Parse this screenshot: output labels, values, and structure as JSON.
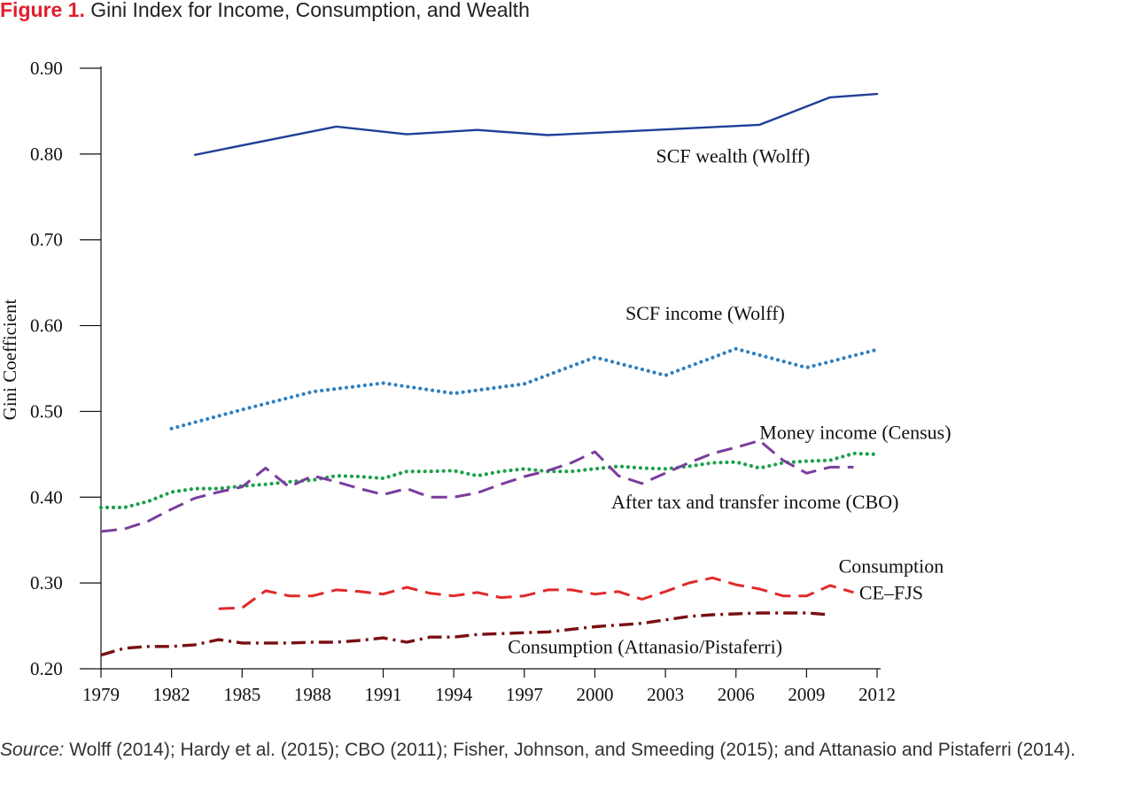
{
  "figure": {
    "number": "Figure 1.",
    "title": "Gini Index for Income, Consumption, and Wealth"
  },
  "source": {
    "label": "Source:",
    "text": "Wolff (2014); Hardy et al. (2015); CBO (2011); Fisher, Johnson, and Smeeding (2015); and Attanasio and Pistaferri (2014)."
  },
  "chart_data": {
    "type": "line",
    "title": "Gini Index for Income, Consumption, and Wealth",
    "xlabel": "",
    "ylabel": "Gini Coefficient",
    "xlim": [
      1979,
      2012
    ],
    "ylim": [
      0.2,
      0.9
    ],
    "x_ticks": [
      "1979",
      "1982",
      "1985",
      "1988",
      "1991",
      "1994",
      "1997",
      "2000",
      "2003",
      "2006",
      "2009",
      "2012"
    ],
    "y_ticks": [
      "0.20",
      "0.30",
      "0.40",
      "0.50",
      "0.60",
      "0.70",
      "0.80",
      "0.90"
    ],
    "grid": false,
    "legend": "none (series labeled directly on plot)",
    "series": [
      {
        "name": "SCF wealth (Wolff)",
        "color": "#1f3f99",
        "style": "solid",
        "label_lines": [
          "SCF  wealth (Wolff)"
        ],
        "points": [
          [
            1983,
            0.799
          ],
          [
            1989,
            0.832
          ],
          [
            1992,
            0.823
          ],
          [
            1995,
            0.828
          ],
          [
            1998,
            0.822
          ],
          [
            2001,
            0.826
          ],
          [
            2004,
            0.83
          ],
          [
            2007,
            0.834
          ],
          [
            2010,
            0.866
          ],
          [
            2012,
            0.87
          ]
        ]
      },
      {
        "name": "SCF income (Wolff)",
        "color": "#2f7fbf",
        "style": "dotted",
        "label_lines": [
          "SCF  income (Wolff)"
        ],
        "points": [
          [
            1982,
            0.48
          ],
          [
            1985,
            0.502
          ],
          [
            1988,
            0.523
          ],
          [
            1991,
            0.533
          ],
          [
            1994,
            0.521
          ],
          [
            1997,
            0.532
          ],
          [
            2000,
            0.563
          ],
          [
            2003,
            0.542
          ],
          [
            2006,
            0.573
          ],
          [
            2009,
            0.551
          ],
          [
            2012,
            0.572
          ]
        ]
      },
      {
        "name": "Money income (Census)",
        "color": "#1aa04a",
        "style": "dotted",
        "label_lines": [
          "Money income (Census)"
        ],
        "points": [
          [
            1979,
            0.388
          ],
          [
            1980,
            0.388
          ],
          [
            1981,
            0.395
          ],
          [
            1982,
            0.406
          ],
          [
            1983,
            0.41
          ],
          [
            1984,
            0.41
          ],
          [
            1985,
            0.413
          ],
          [
            1986,
            0.415
          ],
          [
            1987,
            0.418
          ],
          [
            1988,
            0.42
          ],
          [
            1989,
            0.425
          ],
          [
            1990,
            0.424
          ],
          [
            1991,
            0.422
          ],
          [
            1992,
            0.43
          ],
          [
            1993,
            0.43
          ],
          [
            1994,
            0.431
          ],
          [
            1995,
            0.425
          ],
          [
            1996,
            0.43
          ],
          [
            1997,
            0.433
          ],
          [
            1998,
            0.43
          ],
          [
            1999,
            0.43
          ],
          [
            2000,
            0.433
          ],
          [
            2001,
            0.436
          ],
          [
            2002,
            0.434
          ],
          [
            2003,
            0.433
          ],
          [
            2004,
            0.436
          ],
          [
            2005,
            0.44
          ],
          [
            2006,
            0.441
          ],
          [
            2007,
            0.434
          ],
          [
            2008,
            0.44
          ],
          [
            2009,
            0.442
          ],
          [
            2010,
            0.443
          ],
          [
            2011,
            0.451
          ],
          [
            2012,
            0.45
          ]
        ]
      },
      {
        "name": "After tax and transfer income (CBO)",
        "color": "#7b3c9e",
        "style": "dashed",
        "label_lines": [
          "After tax and transfer income (CBO)"
        ],
        "points": [
          [
            1979,
            0.36
          ],
          [
            1980,
            0.363
          ],
          [
            1981,
            0.372
          ],
          [
            1982,
            0.386
          ],
          [
            1983,
            0.399
          ],
          [
            1984,
            0.406
          ],
          [
            1985,
            0.412
          ],
          [
            1986,
            0.434
          ],
          [
            1987,
            0.412
          ],
          [
            1988,
            0.425
          ],
          [
            1989,
            0.418
          ],
          [
            1990,
            0.41
          ],
          [
            1991,
            0.403
          ],
          [
            1992,
            0.41
          ],
          [
            1993,
            0.4
          ],
          [
            1994,
            0.4
          ],
          [
            1995,
            0.405
          ],
          [
            1996,
            0.415
          ],
          [
            1997,
            0.424
          ],
          [
            1998,
            0.431
          ],
          [
            1999,
            0.44
          ],
          [
            2000,
            0.453
          ],
          [
            2001,
            0.425
          ],
          [
            2002,
            0.416
          ],
          [
            2003,
            0.428
          ],
          [
            2004,
            0.44
          ],
          [
            2005,
            0.451
          ],
          [
            2006,
            0.458
          ],
          [
            2007,
            0.466
          ],
          [
            2008,
            0.443
          ],
          [
            2009,
            0.428
          ],
          [
            2010,
            0.435
          ],
          [
            2011,
            0.435
          ]
        ]
      },
      {
        "name": "Consumption CE-FJS",
        "color": "#e02a2a",
        "style": "dashed",
        "label_lines": [
          "Consumption",
          "CE–FJS"
        ],
        "points": [
          [
            1984,
            0.27
          ],
          [
            1985,
            0.271
          ],
          [
            1986,
            0.291
          ],
          [
            1987,
            0.285
          ],
          [
            1988,
            0.285
          ],
          [
            1989,
            0.292
          ],
          [
            1990,
            0.29
          ],
          [
            1991,
            0.287
          ],
          [
            1992,
            0.295
          ],
          [
            1993,
            0.288
          ],
          [
            1994,
            0.285
          ],
          [
            1995,
            0.289
          ],
          [
            1996,
            0.283
          ],
          [
            1997,
            0.285
          ],
          [
            1998,
            0.292
          ],
          [
            1999,
            0.292
          ],
          [
            2000,
            0.287
          ],
          [
            2001,
            0.29
          ],
          [
            2002,
            0.281
          ],
          [
            2003,
            0.29
          ],
          [
            2004,
            0.3
          ],
          [
            2005,
            0.306
          ],
          [
            2006,
            0.298
          ],
          [
            2007,
            0.293
          ],
          [
            2008,
            0.285
          ],
          [
            2009,
            0.285
          ],
          [
            2010,
            0.297
          ],
          [
            2011,
            0.289
          ]
        ]
      },
      {
        "name": "Consumption (Attanasio/Pistaferri)",
        "color": "#7a0f12",
        "style": "dash-dot",
        "label_lines": [
          "Consumption (Attanasio/Pistaferri)"
        ],
        "points": [
          [
            1979,
            0.216
          ],
          [
            1980,
            0.224
          ],
          [
            1981,
            0.226
          ],
          [
            1982,
            0.226
          ],
          [
            1983,
            0.228
          ],
          [
            1984,
            0.234
          ],
          [
            1985,
            0.23
          ],
          [
            1986,
            0.23
          ],
          [
            1987,
            0.23
          ],
          [
            1988,
            0.231
          ],
          [
            1989,
            0.231
          ],
          [
            1990,
            0.233
          ],
          [
            1991,
            0.236
          ],
          [
            1992,
            0.231
          ],
          [
            1993,
            0.237
          ],
          [
            1994,
            0.237
          ],
          [
            1995,
            0.24
          ],
          [
            1996,
            0.241
          ],
          [
            1997,
            0.242
          ],
          [
            1998,
            0.243
          ],
          [
            1999,
            0.246
          ],
          [
            2000,
            0.249
          ],
          [
            2001,
            0.251
          ],
          [
            2002,
            0.253
          ],
          [
            2003,
            0.257
          ],
          [
            2004,
            0.261
          ],
          [
            2005,
            0.263
          ],
          [
            2006,
            0.264
          ],
          [
            2007,
            0.265
          ],
          [
            2008,
            0.265
          ],
          [
            2009,
            0.265
          ],
          [
            2010,
            0.263
          ]
        ]
      }
    ]
  }
}
